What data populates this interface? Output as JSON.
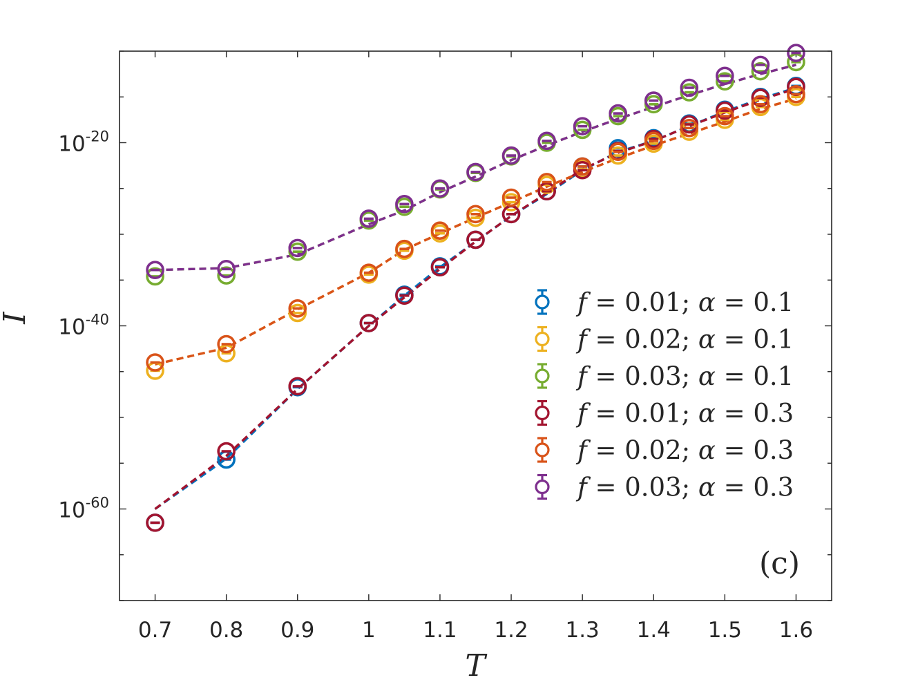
{
  "chart_data": {
    "type": "line",
    "xlabel": "T",
    "ylabel": "I",
    "x_scale": "linear",
    "y_scale": "log",
    "xlim": [
      0.65,
      1.65
    ],
    "ylim_log10": [
      -70,
      -10
    ],
    "x_ticks": [
      0.7,
      0.8,
      0.9,
      1.0,
      1.1,
      1.2,
      1.3,
      1.4,
      1.5,
      1.6
    ],
    "x_tick_labels": [
      "0.7",
      "0.8",
      "0.9",
      "1",
      "1.1",
      "1.2",
      "1.3",
      "1.4",
      "1.5",
      "1.6"
    ],
    "y_ticks_log10": [
      -20,
      -40,
      -60
    ],
    "y_tick_labels": [
      {
        "base": "10",
        "exp": "-20"
      },
      {
        "base": "10",
        "exp": "-40"
      },
      {
        "base": "10",
        "exp": "-60"
      }
    ],
    "panel_label": "(c)",
    "legend_position": "right",
    "x": [
      0.7,
      0.8,
      0.9,
      1.0,
      1.05,
      1.1,
      1.15,
      1.2,
      1.25,
      1.3,
      1.35,
      1.4,
      1.45,
      1.5,
      1.55,
      1.6
    ],
    "series": [
      {
        "name": "f = 0.01; α = 0.1",
        "label": {
          "var1": "f",
          "val1": "= 0.01;",
          "var2": "α",
          "val2": "= 0.1"
        },
        "color": "#0072BD",
        "values_log10": [
          -61.5,
          -54.6,
          -46.7,
          -39.7,
          -36.6,
          -33.5,
          -30.6,
          -27.8,
          -25.3,
          -22.6,
          -20.6,
          -19.5,
          -17.9,
          -16.4,
          -15.0,
          -13.8
        ],
        "fit_log10": [
          -60.0,
          -54.5,
          -46.9,
          -40.0,
          -36.7,
          -33.6,
          -30.8,
          -28.0,
          -25.6,
          -23.0,
          -21.0,
          -19.8,
          -18.2,
          -16.6,
          -15.2,
          -14.0
        ]
      },
      {
        "name": "f = 0.02; α = 0.1",
        "label": {
          "var1": "f",
          "val1": "= 0.02;",
          "var2": "α",
          "val2": "= 0.1"
        },
        "color": "#EDB120",
        "values_log10": [
          -44.9,
          -43.0,
          -38.6,
          -34.4,
          -31.8,
          -29.9,
          -28.2,
          -26.5,
          -24.6,
          -22.9,
          -21.4,
          -20.1,
          -18.8,
          -17.5,
          -16.1,
          -15.0
        ],
        "fit_log10": [
          -44.2,
          -42.4,
          -38.2,
          -34.2,
          -31.7,
          -29.9,
          -28.2,
          -26.5,
          -24.8,
          -23.2,
          -21.7,
          -20.3,
          -19.0,
          -17.7,
          -16.3,
          -15.2
        ]
      },
      {
        "name": "f = 0.03; α = 0.1",
        "label": {
          "var1": "f",
          "val1": "= 0.03;",
          "var2": "α",
          "val2": "= 0.1"
        },
        "color": "#77AC30",
        "values_log10": [
          -34.6,
          -34.5,
          -31.9,
          -28.5,
          -27.0,
          -25.1,
          -23.3,
          -21.5,
          -20.0,
          -18.6,
          -17.1,
          -15.8,
          -14.5,
          -13.3,
          -12.2,
          -11.2
        ],
        "fit_log10": [
          -33.9,
          -33.7,
          -32.2,
          -28.9,
          -27.4,
          -25.4,
          -23.7,
          -21.9,
          -20.3,
          -18.8,
          -17.4,
          -16.1,
          -14.8,
          -13.6,
          -12.5,
          -11.5
        ]
      },
      {
        "name": "f = 0.01; α = 0.3",
        "label": {
          "var1": "f",
          "val1": "= 0.01;",
          "var2": "α",
          "val2": "= 0.3"
        },
        "color": "#A2142F",
        "values_log10": [
          -61.5,
          -53.7,
          -46.6,
          -39.7,
          -36.7,
          -33.6,
          -30.6,
          -27.8,
          -25.3,
          -23.0,
          -20.9,
          -19.6,
          -18.0,
          -16.5,
          -15.1,
          -13.9
        ],
        "fit_log10": [
          -60.0,
          -54.2,
          -46.9,
          -40.0,
          -36.9,
          -33.8,
          -30.8,
          -28.0,
          -25.5,
          -22.9,
          -21.1,
          -19.8,
          -18.2,
          -16.7,
          -15.3,
          -14.1
        ]
      },
      {
        "name": "f = 0.02; α = 0.3",
        "label": {
          "var1": "f",
          "val1": "= 0.02;",
          "var2": "α",
          "val2": "= 0.3"
        },
        "color": "#D95319",
        "values_log10": [
          -44.0,
          -42.0,
          -38.1,
          -34.2,
          -31.6,
          -29.6,
          -27.8,
          -26.0,
          -24.3,
          -22.6,
          -21.0,
          -19.8,
          -18.4,
          -17.1,
          -15.8,
          -14.7
        ],
        "fit_log10": [
          -44.2,
          -42.4,
          -38.2,
          -34.2,
          -31.7,
          -29.9,
          -28.2,
          -26.5,
          -24.8,
          -23.2,
          -21.7,
          -20.3,
          -19.0,
          -17.7,
          -16.3,
          -15.2
        ]
      },
      {
        "name": "f = 0.03; α = 0.3",
        "label": {
          "var1": "f",
          "val1": "= 0.03;",
          "var2": "α",
          "val2": "= 0.3"
        },
        "color": "#7E2F8E",
        "values_log10": [
          -33.9,
          -33.8,
          -31.5,
          -28.3,
          -26.7,
          -25.0,
          -23.2,
          -21.4,
          -19.8,
          -18.2,
          -16.8,
          -15.4,
          -14.0,
          -12.7,
          -11.5,
          -10.2
        ],
        "fit_log10": [
          -33.9,
          -33.7,
          -32.2,
          -28.9,
          -27.4,
          -25.4,
          -23.7,
          -21.9,
          -20.3,
          -18.8,
          -17.4,
          -16.1,
          -14.8,
          -13.6,
          -12.5,
          -11.5
        ]
      }
    ]
  }
}
